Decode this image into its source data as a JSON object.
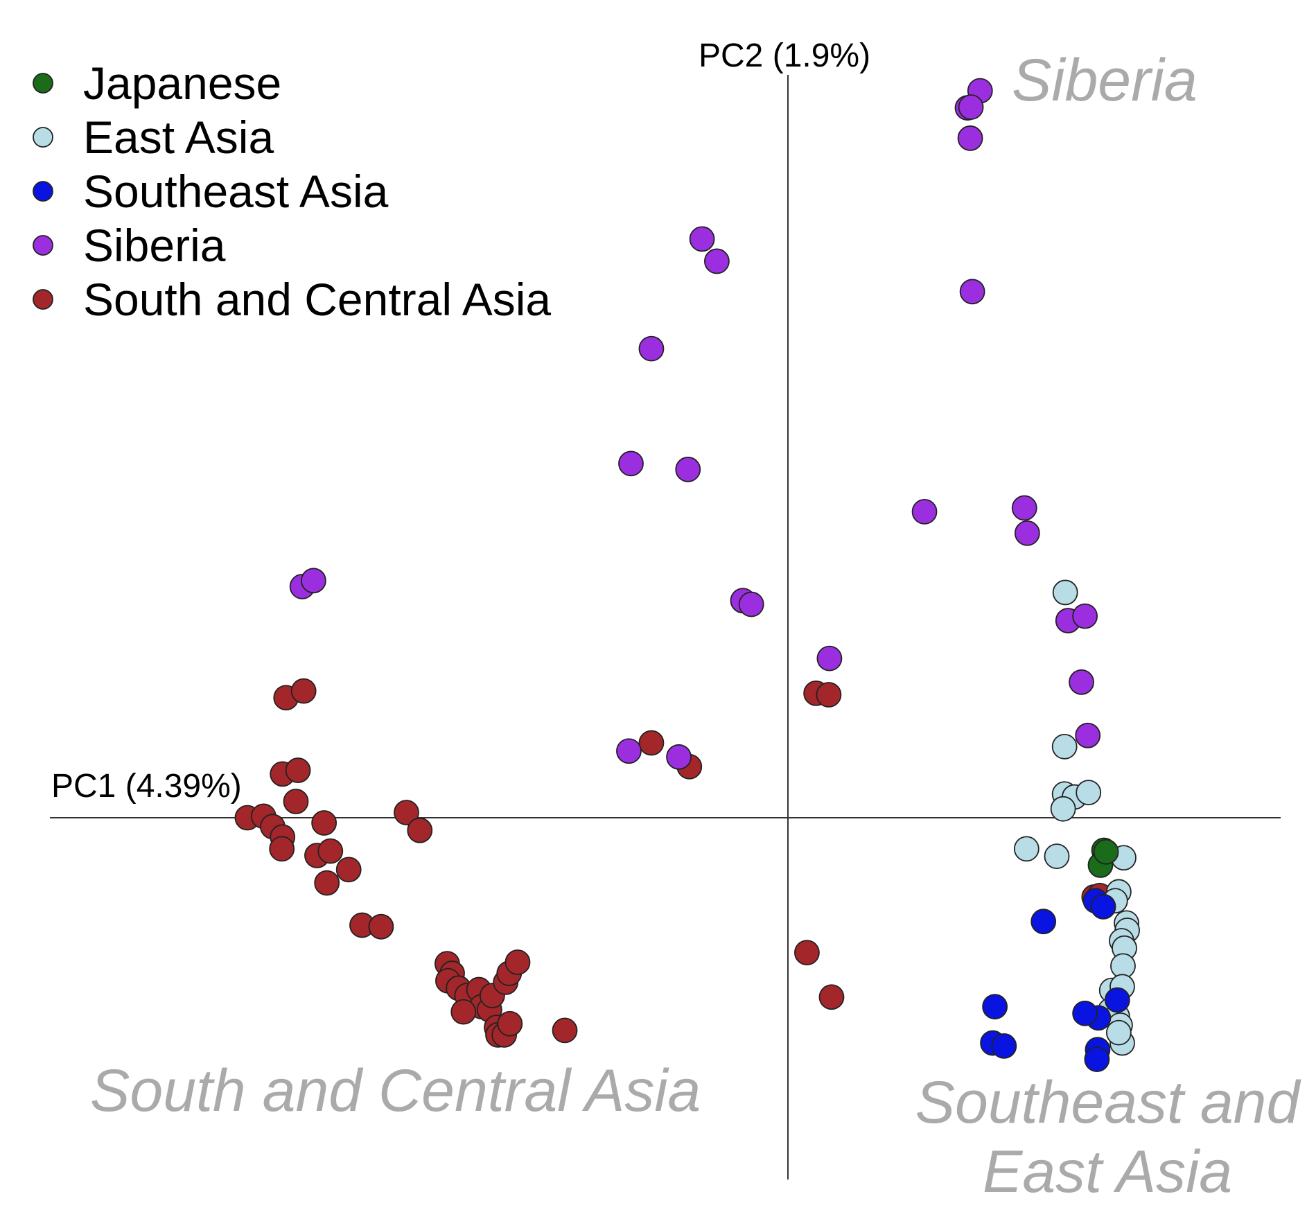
{
  "chart_data": {
    "type": "scatter",
    "title": "",
    "xlabel": "PC1 (4.39%)",
    "ylabel": "PC2 (1.9%)",
    "xlim": [
      -1.0,
      0.7
    ],
    "ylim": [
      -0.49,
      1.01
    ],
    "grid": false,
    "legend": "top-left",
    "colors": {
      "Japanese": "#1a6b1a",
      "East Asia": "#b9dde6",
      "Southeast Asia": "#0a14e0",
      "Siberia": "#9b2fe0",
      "South and Central Asia": "#a3262a"
    },
    "series": [
      {
        "name": "Japanese",
        "points": [
          [
            0.449,
            -0.044
          ],
          [
            0.444,
            -0.064
          ],
          [
            0.452,
            -0.046
          ]
        ]
      },
      {
        "name": "East Asia",
        "points": [
          [
            0.394,
            0.304
          ],
          [
            0.393,
            0.096
          ],
          [
            0.393,
            0.032
          ],
          [
            0.407,
            0.028
          ],
          [
            0.427,
            0.034
          ],
          [
            0.391,
            0.012
          ],
          [
            0.339,
            -0.042
          ],
          [
            0.382,
            -0.052
          ],
          [
            0.477,
            -0.054
          ],
          [
            0.47,
            -0.1
          ],
          [
            0.465,
            -0.112
          ],
          [
            0.481,
            -0.142
          ],
          [
            0.482,
            -0.152
          ],
          [
            0.474,
            -0.166
          ],
          [
            0.478,
            -0.176
          ],
          [
            0.476,
            -0.2
          ],
          [
            0.46,
            -0.233
          ],
          [
            0.475,
            -0.228
          ],
          [
            0.458,
            -0.26
          ],
          [
            0.468,
            -0.268
          ],
          [
            0.472,
            -0.28
          ],
          [
            0.475,
            -0.304
          ],
          [
            0.47,
            -0.29
          ]
        ]
      },
      {
        "name": "Southeast Asia",
        "points": [
          [
            0.437,
            -0.112
          ],
          [
            0.448,
            -0.12
          ],
          [
            0.363,
            -0.14
          ],
          [
            0.468,
            -0.246
          ],
          [
            0.441,
            -0.27
          ],
          [
            0.422,
            -0.264
          ],
          [
            0.294,
            -0.255
          ],
          [
            0.291,
            -0.304
          ],
          [
            0.307,
            -0.308
          ],
          [
            0.44,
            -0.313
          ],
          [
            0.439,
            -0.326
          ]
        ]
      },
      {
        "name": "Siberia",
        "points": [
          [
            0.273,
            0.981
          ],
          [
            0.255,
            0.958
          ],
          [
            0.26,
            0.959
          ],
          [
            0.259,
            0.917
          ],
          [
            0.262,
            0.71
          ],
          [
            -0.122,
            0.781
          ],
          [
            -0.101,
            0.751
          ],
          [
            -0.194,
            0.633
          ],
          [
            -0.223,
            0.478
          ],
          [
            -0.142,
            0.47
          ],
          [
            -0.69,
            0.312
          ],
          [
            -0.674,
            0.32
          ],
          [
            -0.064,
            0.293
          ],
          [
            -0.052,
            0.288
          ],
          [
            0.194,
            0.413
          ],
          [
            0.336,
            0.418
          ],
          [
            0.34,
            0.384
          ],
          [
            0.398,
            0.266
          ],
          [
            0.422,
            0.272
          ],
          [
            0.417,
            0.183
          ],
          [
            0.426,
            0.111
          ],
          [
            0.059,
            0.215
          ],
          [
            -0.226,
            0.09
          ],
          [
            -0.155,
            0.082
          ]
        ]
      },
      {
        "name": "South and Central Asia",
        "points": [
          [
            -0.713,
            0.162
          ],
          [
            -0.688,
            0.171
          ],
          [
            -0.718,
            0.059
          ],
          [
            -0.696,
            0.064
          ],
          [
            -0.699,
            0.022
          ],
          [
            -0.768,
            0.0
          ],
          [
            -0.745,
            0.002
          ],
          [
            -0.732,
            -0.012
          ],
          [
            -0.718,
            -0.026
          ],
          [
            -0.719,
            -0.042
          ],
          [
            -0.659,
            -0.007
          ],
          [
            -0.669,
            -0.051
          ],
          [
            -0.65,
            -0.045
          ],
          [
            -0.624,
            -0.07
          ],
          [
            -0.655,
            -0.088
          ],
          [
            -0.605,
            -0.145
          ],
          [
            -0.578,
            -0.147
          ],
          [
            -0.542,
            0.007
          ],
          [
            -0.523,
            -0.017
          ],
          [
            -0.484,
            -0.197
          ],
          [
            -0.477,
            -0.21
          ],
          [
            -0.483,
            -0.22
          ],
          [
            -0.468,
            -0.23
          ],
          [
            -0.456,
            -0.24
          ],
          [
            -0.439,
            -0.232
          ],
          [
            -0.435,
            -0.255
          ],
          [
            -0.424,
            -0.259
          ],
          [
            -0.461,
            -0.262
          ],
          [
            -0.42,
            -0.24
          ],
          [
            -0.401,
            -0.222
          ],
          [
            -0.396,
            -0.21
          ],
          [
            -0.384,
            -0.195
          ],
          [
            -0.414,
            -0.283
          ],
          [
            -0.412,
            -0.293
          ],
          [
            -0.403,
            -0.293
          ],
          [
            -0.395,
            -0.278
          ],
          [
            -0.317,
            -0.287
          ],
          [
            0.04,
            0.168
          ],
          [
            0.058,
            0.166
          ],
          [
            -0.194,
            0.101
          ],
          [
            -0.14,
            0.069
          ],
          [
            0.027,
            -0.182
          ],
          [
            0.062,
            -0.242
          ],
          [
            0.435,
            -0.107
          ],
          [
            0.443,
            -0.105
          ]
        ]
      }
    ],
    "annotations": [
      "Siberia",
      "South and Central Asia",
      "Southeast and",
      "East Asia"
    ]
  }
}
